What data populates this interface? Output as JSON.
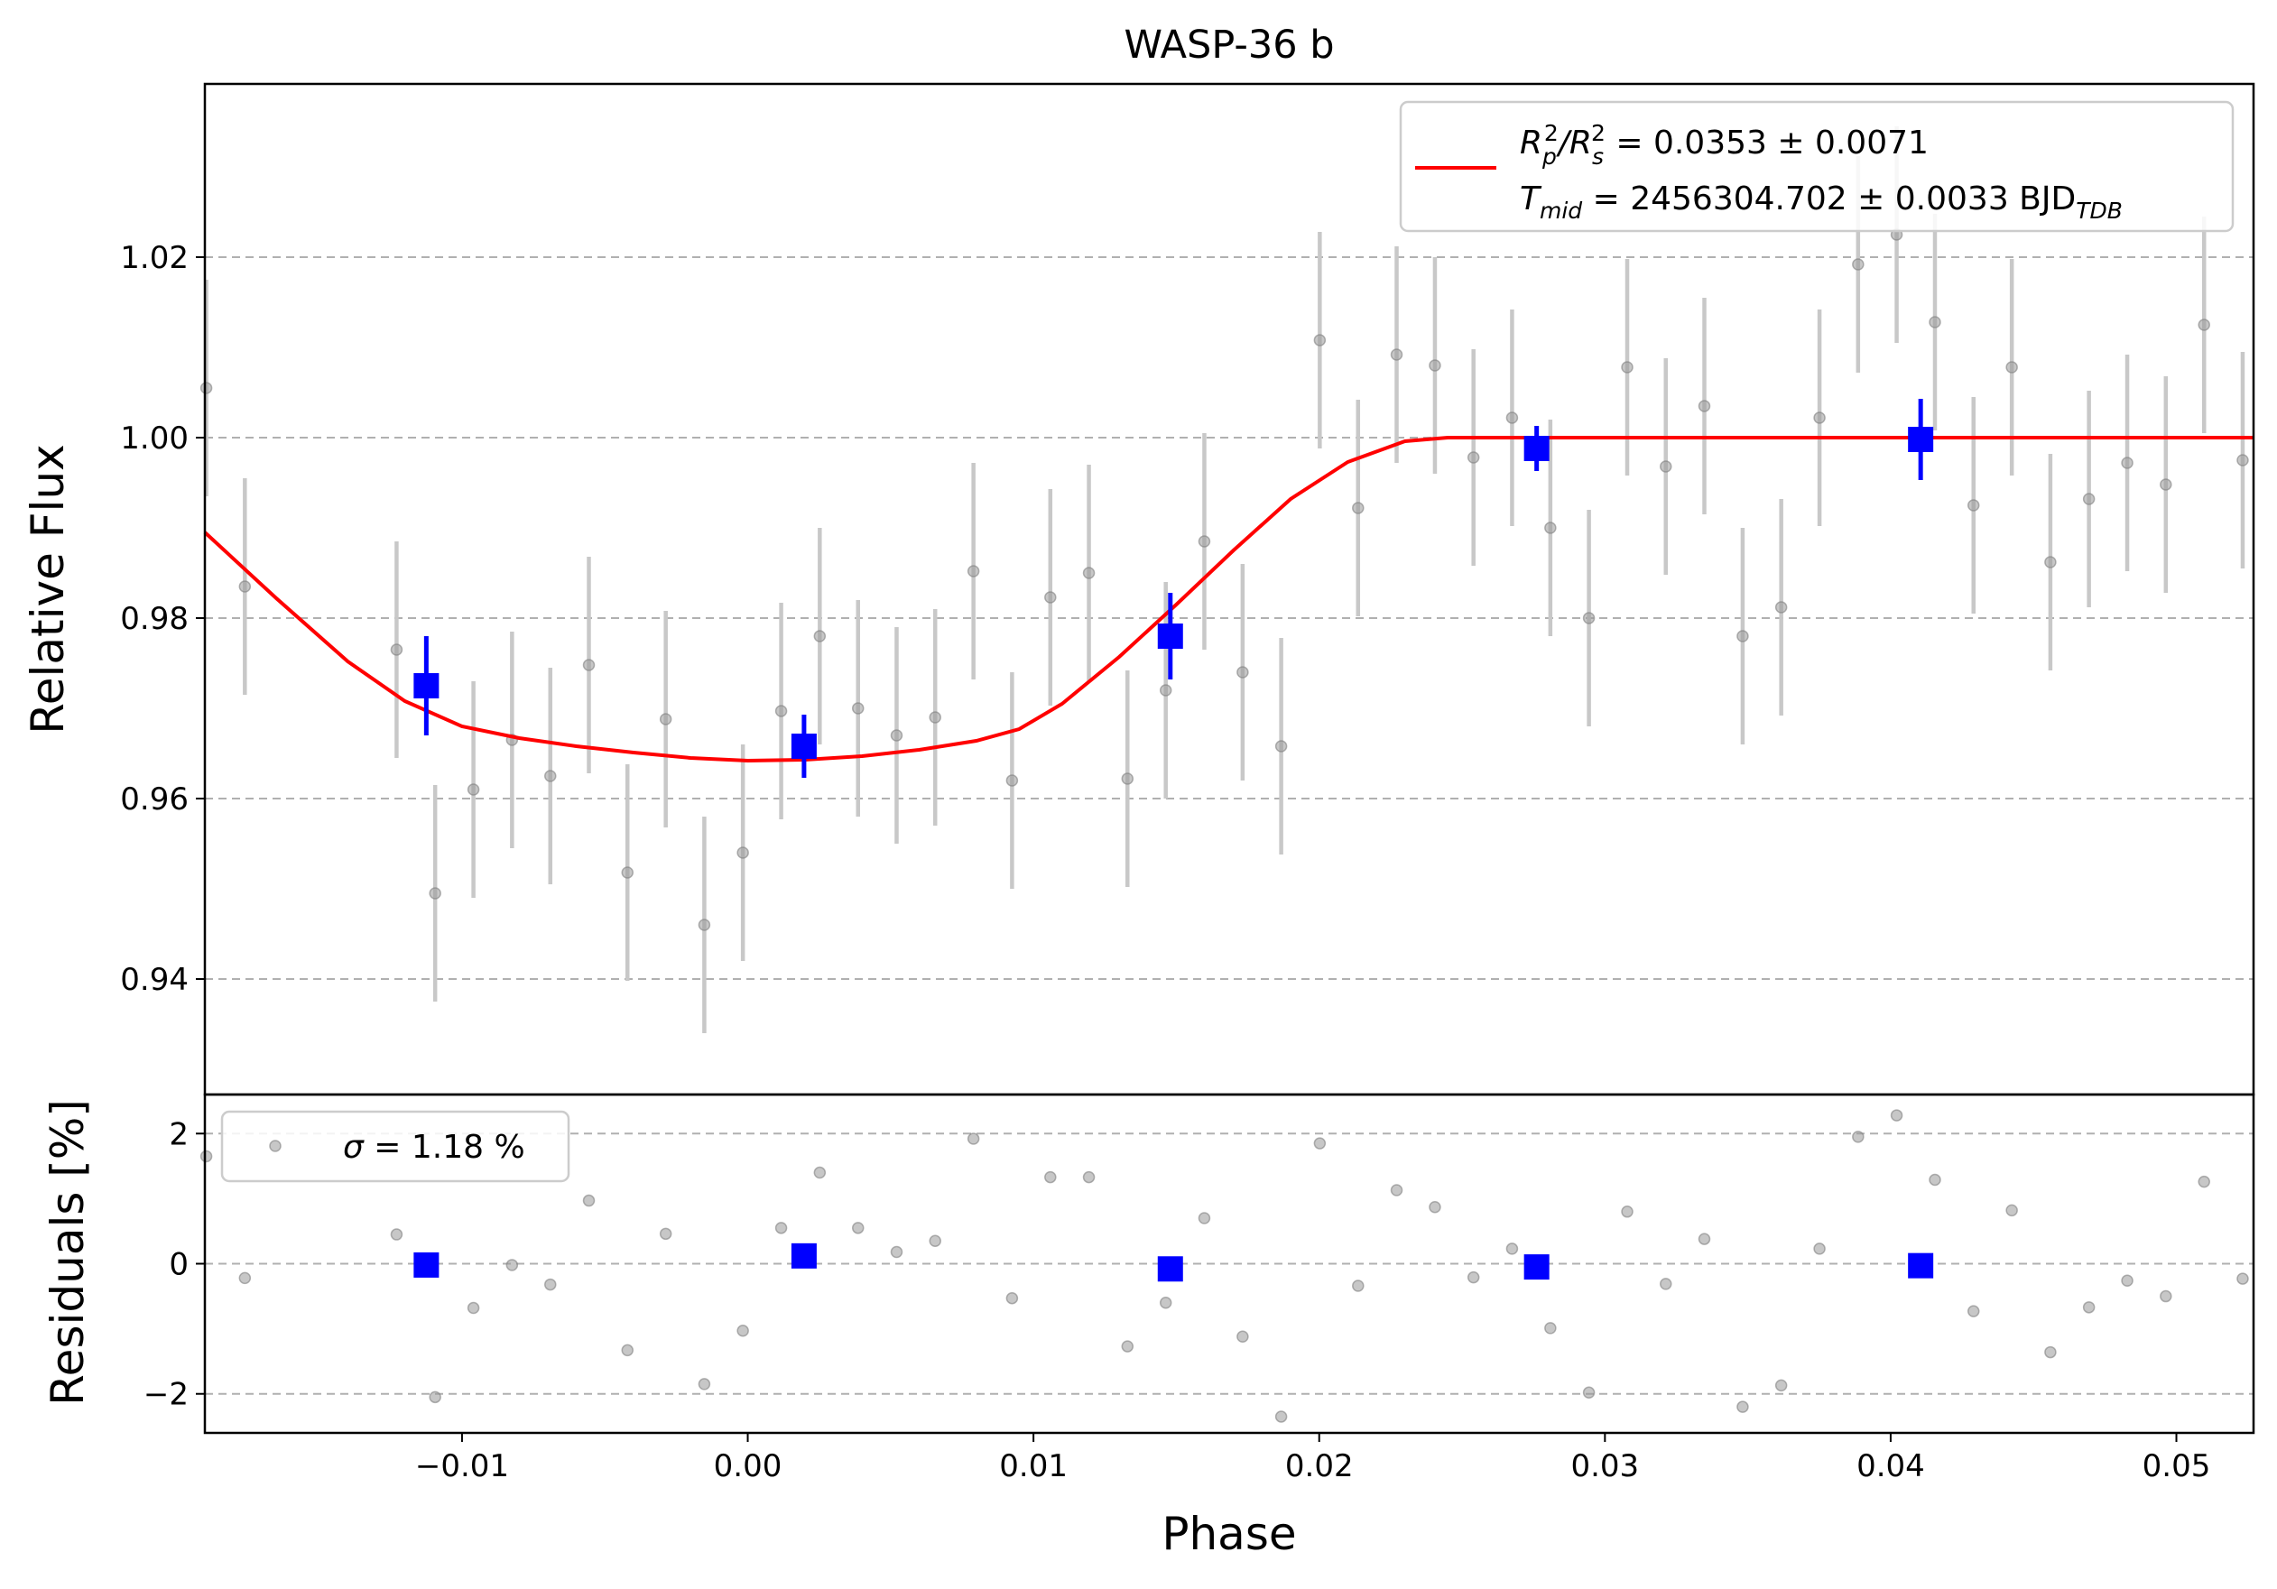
{
  "chart_data": [
    {
      "type": "scatter",
      "title": "WASP-36 b",
      "xlabel": "",
      "ylabel": "Relative Flux",
      "xlim": [
        -0.019,
        0.0527
      ],
      "ylim": [
        0.9272,
        1.0392
      ],
      "yticks": [
        "1.02",
        "1.00",
        "0.98",
        "0.96",
        "0.94"
      ],
      "ytick_values": [
        1.02,
        1.0,
        0.98,
        0.96,
        0.94
      ],
      "grid": "y dashed",
      "legend": {
        "placement": "top-right",
        "entries": [
          {
            "name_parts": [
              "R",
              "p",
              "2",
              "/R",
              "s",
              "2",
              " = 0.0353 ± 0.0071"
            ]
          },
          {
            "name_parts": [
              "T",
              "mid",
              " = 2456304.702 ± 0.0033 BJD",
              "TDB"
            ]
          }
        ]
      },
      "colors": {
        "data": "#999999",
        "errorbar": "#c8c8c8",
        "binned": "#0000ff",
        "model": "#ff0000",
        "grid": "#b0b0b0"
      },
      "series": [
        {
          "kind": "data-with-errorbars",
          "x": [
            -0.01895,
            -0.0176,
            -0.01229,
            -0.01094,
            -0.0096,
            -0.00825,
            -0.00691,
            -0.00556,
            -0.00421,
            -0.00287,
            -0.00152,
            -0.00017,
            0.00117,
            0.00252,
            0.00386,
            0.00521,
            0.00656,
            0.0079,
            0.00925,
            0.01059,
            0.01194,
            0.01329,
            0.01463,
            0.01598,
            0.01732,
            0.01867,
            0.02002,
            0.02136,
            0.02271,
            0.02405,
            0.0254,
            0.02675,
            0.02809,
            0.02944,
            0.03078,
            0.03213,
            0.03348,
            0.03482,
            0.03617,
            0.03751,
            0.03886,
            0.04021,
            0.04155,
            0.0429,
            0.04424,
            0.04559,
            0.04694,
            0.04828,
            0.04963,
            0.05097,
            0.05232
          ],
          "y": [
            1.0055,
            0.9835,
            0.9765,
            0.9495,
            0.961,
            0.9665,
            0.9625,
            0.9748,
            0.9518,
            0.9688,
            0.946,
            0.954,
            0.9697,
            0.978,
            0.97,
            0.967,
            0.969,
            0.9852,
            0.962,
            0.9823,
            0.985,
            0.9622,
            0.972,
            0.9885,
            0.974,
            0.9658,
            1.0108,
            0.9922,
            1.0092,
            1.008,
            0.9978,
            1.0022,
            0.99,
            0.98,
            1.0078,
            0.9968,
            1.0035,
            0.978,
            0.9812,
            1.0022,
            1.0192,
            1.0225,
            1.0128,
            0.9925,
            1.0078,
            0.9862,
            0.9932,
            0.9972,
            0.9948,
            1.0125,
            0.9975
          ],
          "yerr": [
            0.012,
            0.012,
            0.012,
            0.012,
            0.012,
            0.012,
            0.012,
            0.012,
            0.012,
            0.012,
            0.012,
            0.012,
            0.012,
            0.012,
            0.012,
            0.012,
            0.012,
            0.012,
            0.012,
            0.012,
            0.012,
            0.012,
            0.012,
            0.012,
            0.012,
            0.012,
            0.012,
            0.012,
            0.012,
            0.012,
            0.012,
            0.012,
            0.012,
            0.012,
            0.012,
            0.012,
            0.012,
            0.012,
            0.012,
            0.012,
            0.012,
            0.012,
            0.012,
            0.012,
            0.012,
            0.012,
            0.012,
            0.012,
            0.012,
            0.012,
            0.012
          ]
        },
        {
          "kind": "binned",
          "x": [
            -0.01125,
            0.00197,
            0.01479,
            0.02761,
            0.04105
          ],
          "y": [
            0.9725,
            0.9658,
            0.978,
            0.9988,
            0.9998
          ],
          "yerr": [
            0.0055,
            0.0035,
            0.0048,
            0.0025,
            0.0045
          ]
        },
        {
          "kind": "model-line",
          "x": [
            -0.019,
            -0.0165,
            -0.014,
            -0.012,
            -0.01,
            -0.008,
            -0.006,
            -0.004,
            -0.002,
            0.0,
            0.002,
            0.004,
            0.006,
            0.008,
            0.0095,
            0.011,
            0.013,
            0.015,
            0.017,
            0.019,
            0.021,
            0.023,
            0.0245,
            0.025,
            0.03,
            0.04,
            0.0527
          ],
          "y": [
            0.9895,
            0.9822,
            0.9752,
            0.9708,
            0.968,
            0.9667,
            0.9658,
            0.9651,
            0.9645,
            0.9642,
            0.9643,
            0.9647,
            0.9654,
            0.9664,
            0.9677,
            0.9705,
            0.9757,
            0.9815,
            0.9875,
            0.9932,
            0.9973,
            0.9996,
            1.0,
            1.0,
            1.0,
            1.0,
            1.0
          ]
        }
      ]
    },
    {
      "type": "scatter",
      "xlabel": "Phase",
      "ylabel": "Residuals [%]",
      "xlim": [
        -0.019,
        0.0527
      ],
      "ylim": [
        -2.6,
        2.6
      ],
      "yticks": [
        "2",
        "0",
        "−2"
      ],
      "ytick_values": [
        2,
        0,
        -2
      ],
      "xticks": [
        "−0.01",
        "0.00",
        "0.01",
        "0.02",
        "0.03",
        "0.04",
        "0.05"
      ],
      "xtick_values": [
        -0.01,
        0.0,
        0.01,
        0.02,
        0.03,
        0.04,
        0.05
      ],
      "grid": "y dashed",
      "legend": {
        "placement": "top-left",
        "entries": [
          {
            "name_parts": [
              "σ",
              " = 1.18 %"
            ]
          }
        ]
      },
      "series": [
        {
          "kind": "residuals",
          "x": [
            -0.01895,
            -0.0176,
            -0.01229,
            -0.01094,
            -0.0096,
            -0.00825,
            -0.00691,
            -0.00556,
            -0.00421,
            -0.00287,
            -0.00152,
            -0.00017,
            0.00117,
            0.00252,
            0.00386,
            0.00521,
            0.00656,
            0.0079,
            0.00925,
            0.01059,
            0.01194,
            0.01329,
            0.01463,
            0.01598,
            0.01732,
            0.01867,
            0.02002,
            0.02136,
            0.02271,
            0.02405,
            0.0254,
            0.02675,
            0.02809,
            0.02944,
            0.03078,
            0.03213,
            0.03348,
            0.03482,
            0.03617,
            0.03751,
            0.03886,
            0.04021,
            0.04155,
            0.0429,
            0.04424,
            0.04559,
            0.04694,
            0.04828,
            0.04963,
            0.05097,
            0.05232
          ],
          "y": [
            1.65,
            -0.22,
            0.45,
            -2.05,
            -0.68,
            -0.02,
            -0.32,
            0.97,
            -1.33,
            0.46,
            -1.85,
            -1.03,
            0.55,
            1.4,
            0.55,
            0.18,
            0.35,
            1.92,
            -0.53,
            1.33,
            1.33,
            -1.27,
            -0.6,
            0.7,
            -1.12,
            -2.35,
            1.85,
            -0.34,
            1.13,
            0.87,
            -0.21,
            0.23,
            -0.99,
            -1.98,
            0.8,
            -0.31,
            0.38,
            -2.2,
            -1.87,
            0.23,
            1.95,
            2.28,
            1.29,
            -0.73,
            0.82,
            -1.36,
            -0.67,
            -0.26,
            -0.5,
            1.26,
            -0.23
          ]
        },
        {
          "kind": "binned",
          "x": [
            -0.01125,
            0.00197,
            0.01479,
            0.02761,
            0.04105
          ],
          "y": [
            -0.02,
            0.12,
            -0.08,
            -0.05,
            -0.03
          ]
        }
      ]
    }
  ]
}
